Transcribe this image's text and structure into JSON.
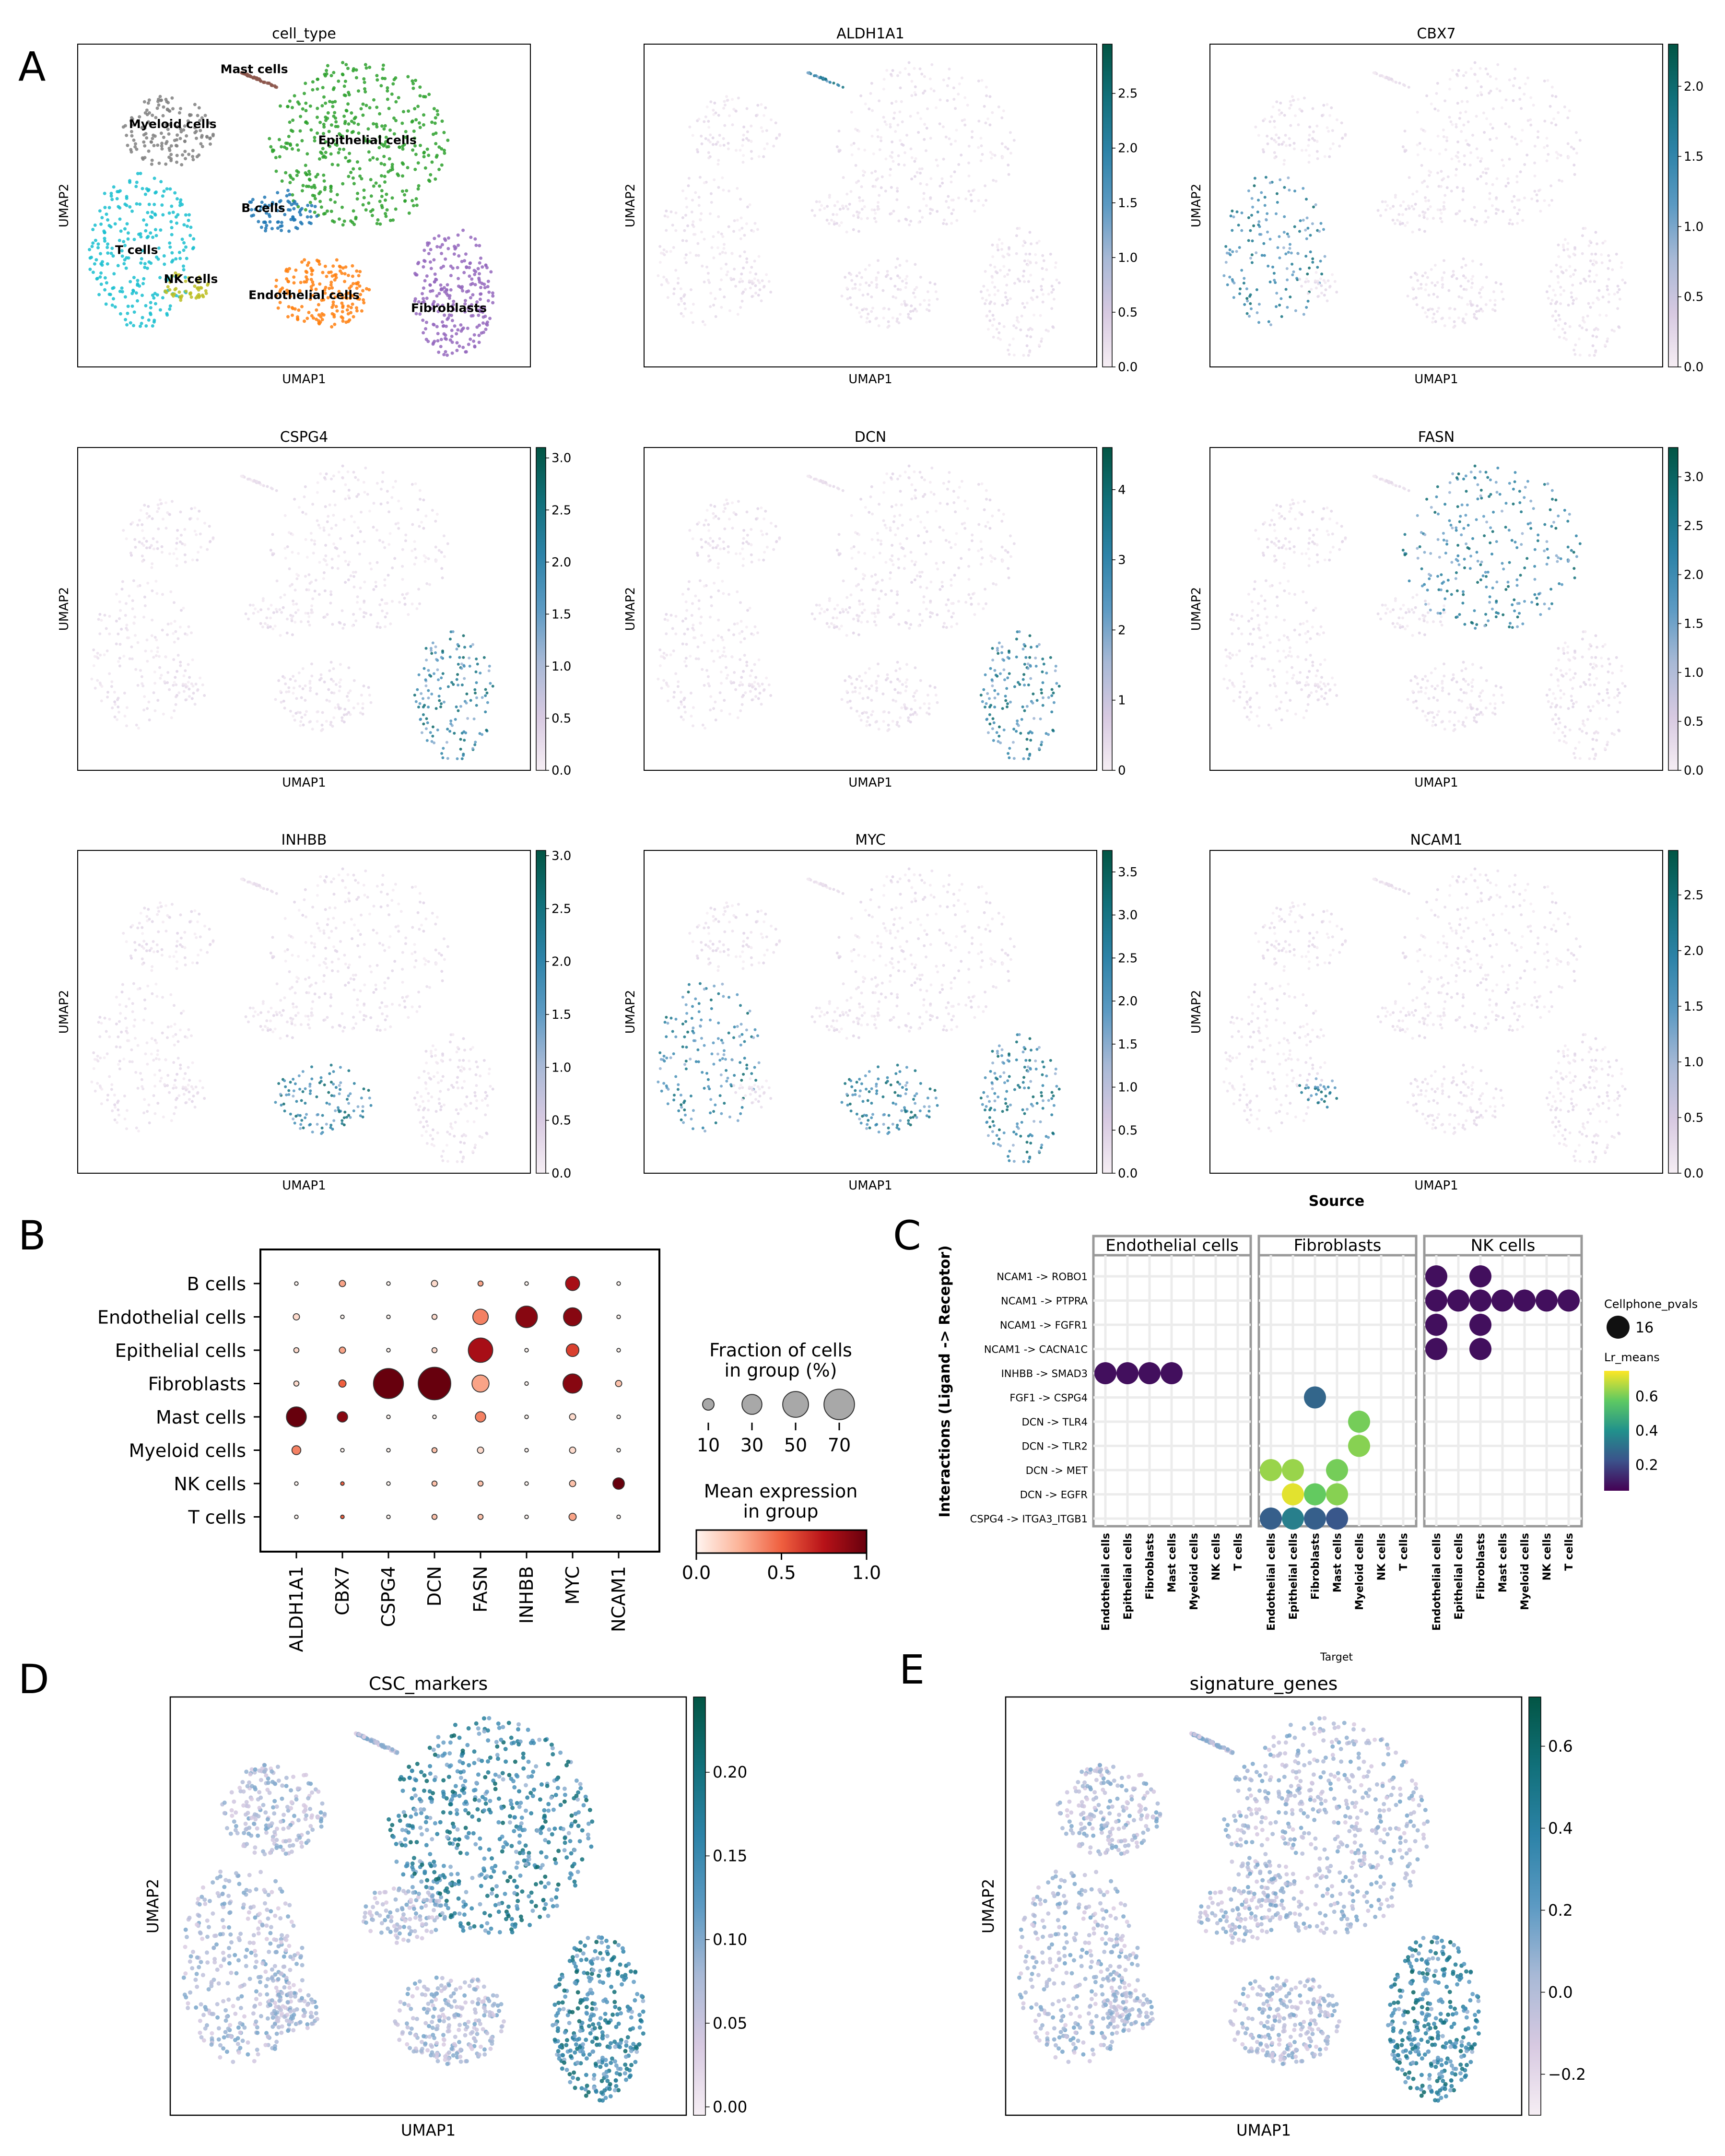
{
  "panels": {
    "A": "A",
    "B": "B",
    "C": "C",
    "D": "D",
    "E": "E"
  },
  "colors": {
    "umap_cmap": [
      "#f6eef4",
      "#d7c9e1",
      "#a8b9d6",
      "#5c9ac3",
      "#2d83a8",
      "#11707a",
      "#025544"
    ],
    "dot_cmap": [
      "#fff5f0",
      "#fcb499",
      "#ef5f3f",
      "#b71218",
      "#67000d"
    ],
    "viridis": [
      "#440154",
      "#3b528b",
      "#21918c",
      "#5ec962",
      "#fde725"
    ],
    "cell_types": {
      "Mast cells": "#8c564b",
      "Myeloid cells": "#7f7f7f",
      "Epithelial cells": "#2ca02c",
      "B cells": "#1f77b4",
      "T cells": "#17becf",
      "NK cells": "#bcbd22",
      "Endothelial cells": "#ff7f0e",
      "Fibroblasts": "#9467bd"
    }
  },
  "chart_data": [
    {
      "id": "A-cell_type",
      "type": "scatter",
      "title": "cell_type",
      "xlabel": "UMAP1",
      "ylabel": "UMAP2",
      "legend_loc": "on data",
      "clusters": [
        "Mast cells",
        "Myeloid cells",
        "Epithelial cells",
        "B cells",
        "T cells",
        "NK cells",
        "Endothelial cells",
        "Fibroblasts"
      ]
    },
    {
      "id": "A-ALDH1A1",
      "type": "scatter",
      "title": "ALDH1A1",
      "xlabel": "UMAP1",
      "ylabel": "UMAP2",
      "colorbar_ticks": [
        "0.0",
        "0.5",
        "1.0",
        "1.5",
        "2.0",
        "2.5"
      ],
      "colorbar_range": [
        0,
        2.95
      ],
      "high_in": [
        "Mast cells"
      ]
    },
    {
      "id": "A-CBX7",
      "type": "scatter",
      "title": "CBX7",
      "xlabel": "UMAP1",
      "ylabel": "UMAP2",
      "colorbar_ticks": [
        "0.0",
        "0.5",
        "1.0",
        "1.5",
        "2.0"
      ],
      "colorbar_range": [
        0,
        2.3
      ],
      "high_in": [
        "T cells"
      ]
    },
    {
      "id": "A-CSPG4",
      "type": "scatter",
      "title": "CSPG4",
      "xlabel": "UMAP1",
      "ylabel": "UMAP2",
      "colorbar_ticks": [
        "0.0",
        "0.5",
        "1.0",
        "1.5",
        "2.0",
        "2.5",
        "3.0"
      ],
      "colorbar_range": [
        0,
        3.1
      ],
      "high_in": [
        "Fibroblasts"
      ]
    },
    {
      "id": "A-DCN",
      "type": "scatter",
      "title": "DCN",
      "xlabel": "UMAP1",
      "ylabel": "UMAP2",
      "colorbar_ticks": [
        "0",
        "1",
        "2",
        "3",
        "4"
      ],
      "colorbar_range": [
        0,
        4.6
      ],
      "high_in": [
        "Fibroblasts"
      ]
    },
    {
      "id": "A-FASN",
      "type": "scatter",
      "title": "FASN",
      "xlabel": "UMAP1",
      "ylabel": "UMAP2",
      "colorbar_ticks": [
        "0.0",
        "0.5",
        "1.0",
        "1.5",
        "2.0",
        "2.5",
        "3.0"
      ],
      "colorbar_range": [
        0,
        3.3
      ],
      "high_in": [
        "Epithelial cells"
      ]
    },
    {
      "id": "A-INHBB",
      "type": "scatter",
      "title": "INHBB",
      "xlabel": "UMAP1",
      "ylabel": "UMAP2",
      "colorbar_ticks": [
        "0.0",
        "0.5",
        "1.0",
        "1.5",
        "2.0",
        "2.5",
        "3.0"
      ],
      "colorbar_range": [
        0,
        3.05
      ],
      "high_in": [
        "Endothelial cells"
      ]
    },
    {
      "id": "A-MYC",
      "type": "scatter",
      "title": "MYC",
      "xlabel": "UMAP1",
      "ylabel": "UMAP2",
      "colorbar_ticks": [
        "0.0",
        "0.5",
        "1.0",
        "1.5",
        "2.0",
        "2.5",
        "3.0",
        "3.5"
      ],
      "colorbar_range": [
        0,
        3.75
      ],
      "high_in": [
        "T cells",
        "Endothelial cells",
        "Fibroblasts"
      ]
    },
    {
      "id": "A-NCAM1",
      "type": "scatter",
      "title": "NCAM1",
      "xlabel": "UMAP1",
      "ylabel": "UMAP2",
      "colorbar_ticks": [
        "0.0",
        "0.5",
        "1.0",
        "1.5",
        "2.0",
        "2.5"
      ],
      "colorbar_range": [
        0,
        2.9
      ],
      "high_in": [
        "NK cells"
      ]
    },
    {
      "id": "B-dotplot",
      "type": "scatter",
      "genes": [
        "ALDH1A1",
        "CBX7",
        "CSPG4",
        "DCN",
        "FASN",
        "INHBB",
        "MYC",
        "NCAM1"
      ],
      "groups": [
        "B cells",
        "Endothelial cells",
        "Epithelial cells",
        "Fibroblasts",
        "Mast cells",
        "Myeloid cells",
        "NK cells",
        "T cells"
      ],
      "fraction": [
        [
          1,
          3,
          1,
          3,
          2,
          1,
          15,
          1
        ],
        [
          3,
          1,
          1,
          2,
          18,
          35,
          25,
          1
        ],
        [
          2,
          3,
          1,
          2,
          45,
          1,
          12,
          1
        ],
        [
          2,
          4,
          68,
          80,
          22,
          1,
          28,
          3
        ],
        [
          30,
          8,
          1,
          1,
          8,
          1,
          3,
          1
        ],
        [
          6,
          1,
          1,
          2,
          3,
          1,
          3,
          1
        ],
        [
          1,
          1,
          1,
          2,
          2,
          1,
          3,
          10
        ],
        [
          1,
          1,
          1,
          2,
          2,
          1,
          4,
          1
        ]
      ],
      "mean_expr": [
        [
          0.0,
          0.3,
          0.0,
          0.1,
          0.3,
          0.0,
          0.8,
          0.0
        ],
        [
          0.1,
          0.0,
          0.0,
          0.1,
          0.4,
          0.9,
          0.9,
          0.0
        ],
        [
          0.1,
          0.3,
          0.0,
          0.1,
          0.8,
          0.0,
          0.6,
          0.0
        ],
        [
          0.1,
          0.5,
          1.0,
          1.0,
          0.3,
          0.0,
          0.9,
          0.2
        ],
        [
          1.0,
          0.9,
          0.0,
          0.0,
          0.4,
          0.0,
          0.1,
          0.0
        ],
        [
          0.4,
          0.0,
          0.0,
          0.2,
          0.1,
          0.0,
          0.1,
          0.0
        ],
        [
          0.0,
          0.5,
          0.0,
          0.2,
          0.2,
          0.0,
          0.2,
          1.0
        ],
        [
          0.0,
          0.5,
          0.0,
          0.2,
          0.2,
          0.0,
          0.3,
          0.0
        ]
      ],
      "size_legend_title": "Fraction of cells\nin group (%)",
      "size_legend": [
        10,
        30,
        50,
        70
      ],
      "color_legend_title": "Mean expression\nin group",
      "color_ticks": [
        "0.0",
        "0.5",
        "1.0"
      ],
      "color_range": [
        0,
        1
      ]
    },
    {
      "id": "C-cellphone",
      "type": "scatter",
      "top_label": "Source",
      "ylabel": "Interactions (Ligand -> Receptor)",
      "xlabel": "Target",
      "sources": [
        "Endothelial cells",
        "Fibroblasts",
        "NK cells"
      ],
      "targets": [
        "Endothelial cells",
        "Epithelial cells",
        "Fibroblasts",
        "Mast cells",
        "Myeloid cells",
        "NK cells",
        "T cells"
      ],
      "interactions": [
        "NCAM1 -> ROBO1",
        "NCAM1 -> PTPRA",
        "NCAM1 -> FGFR1",
        "NCAM1 -> CACNA1C",
        "INHBB -> SMAD3",
        "FGF1 -> CSPG4",
        "DCN -> TLR4",
        "DCN -> TLR2",
        "DCN -> MET",
        "DCN -> EGFR",
        "CSPG4 -> ITGA3_ITGB1"
      ],
      "points": [
        {
          "source": 0,
          "target": 0,
          "interaction": 4,
          "lr_mean": 0.08
        },
        {
          "source": 0,
          "target": 1,
          "interaction": 4,
          "lr_mean": 0.08
        },
        {
          "source": 0,
          "target": 2,
          "interaction": 4,
          "lr_mean": 0.08
        },
        {
          "source": 0,
          "target": 3,
          "interaction": 4,
          "lr_mean": 0.08
        },
        {
          "source": 1,
          "target": 2,
          "interaction": 5,
          "lr_mean": 0.28
        },
        {
          "source": 1,
          "target": 4,
          "interaction": 6,
          "lr_mean": 0.6
        },
        {
          "source": 1,
          "target": 4,
          "interaction": 7,
          "lr_mean": 0.62
        },
        {
          "source": 1,
          "target": 0,
          "interaction": 8,
          "lr_mean": 0.64
        },
        {
          "source": 1,
          "target": 1,
          "interaction": 8,
          "lr_mean": 0.64
        },
        {
          "source": 1,
          "target": 3,
          "interaction": 8,
          "lr_mean": 0.6
        },
        {
          "source": 1,
          "target": 1,
          "interaction": 9,
          "lr_mean": 0.72
        },
        {
          "source": 1,
          "target": 2,
          "interaction": 9,
          "lr_mean": 0.58
        },
        {
          "source": 1,
          "target": 3,
          "interaction": 9,
          "lr_mean": 0.62
        },
        {
          "source": 1,
          "target": 0,
          "interaction": 10,
          "lr_mean": 0.26
        },
        {
          "source": 1,
          "target": 1,
          "interaction": 10,
          "lr_mean": 0.35
        },
        {
          "source": 1,
          "target": 2,
          "interaction": 10,
          "lr_mean": 0.26
        },
        {
          "source": 1,
          "target": 3,
          "interaction": 10,
          "lr_mean": 0.24
        },
        {
          "source": 2,
          "target": 0,
          "interaction": 0,
          "lr_mean": 0.08
        },
        {
          "source": 2,
          "target": 2,
          "interaction": 0,
          "lr_mean": 0.08
        },
        {
          "source": 2,
          "target": 0,
          "interaction": 1,
          "lr_mean": 0.08
        },
        {
          "source": 2,
          "target": 1,
          "interaction": 1,
          "lr_mean": 0.08
        },
        {
          "source": 2,
          "target": 2,
          "interaction": 1,
          "lr_mean": 0.08
        },
        {
          "source": 2,
          "target": 3,
          "interaction": 1,
          "lr_mean": 0.08
        },
        {
          "source": 2,
          "target": 4,
          "interaction": 1,
          "lr_mean": 0.08
        },
        {
          "source": 2,
          "target": 5,
          "interaction": 1,
          "lr_mean": 0.08
        },
        {
          "source": 2,
          "target": 6,
          "interaction": 1,
          "lr_mean": 0.08
        },
        {
          "source": 2,
          "target": 0,
          "interaction": 2,
          "lr_mean": 0.08
        },
        {
          "source": 2,
          "target": 2,
          "interaction": 2,
          "lr_mean": 0.08
        },
        {
          "source": 2,
          "target": 0,
          "interaction": 3,
          "lr_mean": 0.08
        },
        {
          "source": 2,
          "target": 2,
          "interaction": 3,
          "lr_mean": 0.08
        }
      ],
      "pval_legend_title": "Cellphone_pvals",
      "pval_legend_value": "16",
      "lr_legend_title": "Lr_means",
      "lr_ticks": [
        "0.2",
        "0.4",
        "0.6"
      ],
      "lr_range": [
        0.05,
        0.75
      ]
    },
    {
      "id": "D-CSC",
      "type": "scatter",
      "title": "CSC_markers",
      "xlabel": "UMAP1",
      "ylabel": "UMAP2",
      "colorbar_ticks": [
        "0.00",
        "0.05",
        "0.10",
        "0.15",
        "0.20"
      ],
      "colorbar_range": [
        -0.005,
        0.245
      ],
      "high_in": [
        "Fibroblasts",
        "Epithelial cells"
      ]
    },
    {
      "id": "E-signature",
      "type": "scatter",
      "title": "signature_genes",
      "xlabel": "UMAP1",
      "ylabel": "UMAP2",
      "colorbar_ticks": [
        "−0.2",
        "0.0",
        "0.2",
        "0.4",
        "0.6"
      ],
      "colorbar_range": [
        -0.3,
        0.72
      ],
      "high_in": [
        "Fibroblasts"
      ]
    }
  ]
}
